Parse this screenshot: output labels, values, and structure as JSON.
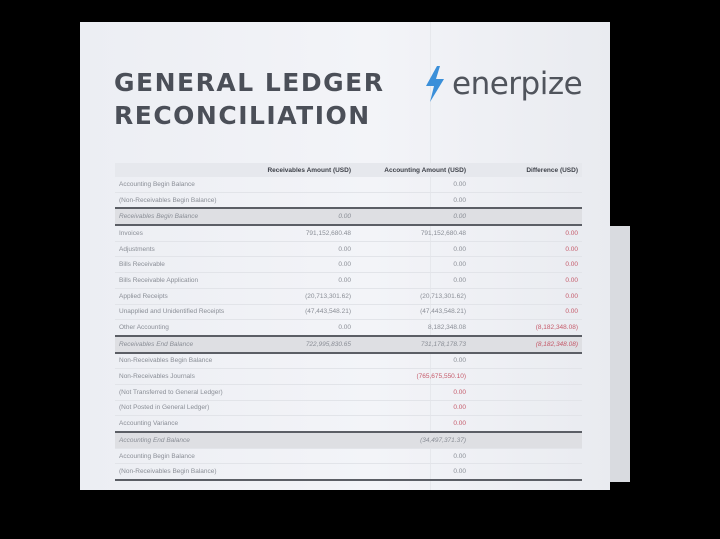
{
  "document": {
    "title_line1": "GENERAL LEDGER",
    "title_line2": "RECONCILIATION",
    "logo_text": "enerpize",
    "brand_color": "#3a8fd9"
  },
  "table": {
    "headers": [
      "",
      "Receivables Amount (USD)",
      "Accounting Amount (USD)",
      "Difference (USD)"
    ],
    "rows": [
      {
        "label": "Accounting Begin Balance",
        "receivables": "",
        "accounting": "0.00",
        "difference": ""
      },
      {
        "label": "(Non-Receivables Begin Balance)",
        "receivables": "",
        "accounting": "0.00",
        "difference": ""
      },
      {
        "label": "Receivables Begin Balance",
        "receivables": "0.00",
        "accounting": "0.00",
        "difference": ""
      },
      {
        "label": "Invoices",
        "receivables": "791,152,680.48",
        "accounting": "791,152,680.48",
        "difference": "0.00"
      },
      {
        "label": "Adjustments",
        "receivables": "0.00",
        "accounting": "0.00",
        "difference": "0.00"
      },
      {
        "label": "Bills Receivable",
        "receivables": "0.00",
        "accounting": "0.00",
        "difference": "0.00"
      },
      {
        "label": "Bills Receivable Application",
        "receivables": "0.00",
        "accounting": "0.00",
        "difference": "0.00"
      },
      {
        "label": "Applied Receipts",
        "receivables": "(20,713,301.62)",
        "accounting": "(20,713,301.62)",
        "difference": "0.00"
      },
      {
        "label": "Unapplied and Unidentified Receipts",
        "receivables": "(47,443,548.21)",
        "accounting": "(47,443,548.21)",
        "difference": "0.00"
      },
      {
        "label": "Other Accounting",
        "receivables": "0.00",
        "accounting": "8,182,348.08",
        "difference": "(8,182,348.08)"
      },
      {
        "label": "Receivables End Balance",
        "receivables": "722,995,830.65",
        "accounting": "731,178,178.73",
        "difference": "(8,182,348.08)"
      },
      {
        "label": "Non-Receivables Begin Balance",
        "receivables": "",
        "accounting": "0.00",
        "difference": ""
      },
      {
        "label": "Non-Receivables Journals",
        "receivables": "",
        "accounting": "(765,675,550.10)",
        "difference": ""
      },
      {
        "label": "(Not Transferred to General Ledger)",
        "receivables": "",
        "accounting": "0.00",
        "difference": ""
      },
      {
        "label": "(Not Posted in General Ledger)",
        "receivables": "",
        "accounting": "0.00",
        "difference": ""
      },
      {
        "label": "Accounting Variance",
        "receivables": "",
        "accounting": "0.00",
        "difference": ""
      },
      {
        "label": "Accounting End Balance",
        "receivables": "",
        "accounting": "(34,497,371.37)",
        "difference": ""
      },
      {
        "label": "Accounting Begin Balance",
        "receivables": "",
        "accounting": "0.00",
        "difference": ""
      },
      {
        "label": "(Non-Receivables Begin Balance)",
        "receivables": "",
        "accounting": "0.00",
        "difference": ""
      }
    ]
  }
}
